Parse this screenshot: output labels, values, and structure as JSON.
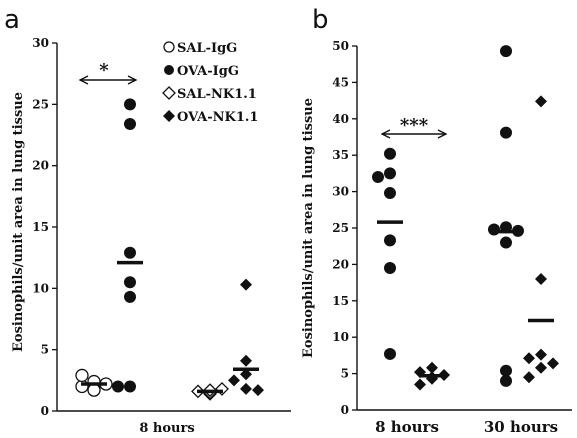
{
  "chart_data": [
    {
      "panel_label": "a",
      "type": "scatter",
      "ylabel": "Eosinophils/unit area in lung tissue",
      "xlabel": "8 hours",
      "ylim": [
        0,
        30
      ],
      "yticks": [
        "0",
        "5",
        "10",
        "15",
        "20",
        "25",
        "30"
      ],
      "yticks_values": [
        0,
        5,
        10,
        15,
        20,
        25,
        30
      ],
      "legend": [
        {
          "label": "SAL-IgG",
          "marker": "open-circle"
        },
        {
          "label": "OVA-IgG",
          "marker": "filled-circle"
        },
        {
          "label": "SAL-NK1.1",
          "marker": "open-diamond"
        },
        {
          "label": "OVA-NK1.1",
          "marker": "filled-diamond"
        }
      ],
      "groups": [
        {
          "name": "SAL-IgG",
          "marker": "open-circle",
          "values": [
            1.8,
            2.0,
            2.2,
            2.4,
            2.9,
            1.7
          ],
          "mean": 2.2
        },
        {
          "name": "OVA-IgG",
          "marker": "filled-circle",
          "values": [
            25.0,
            23.4,
            12.9,
            10.5,
            9.3,
            2.0,
            2.0
          ],
          "mean": 12.1
        },
        {
          "name": "SAL-NK1.1",
          "marker": "open-diamond",
          "values": [
            1.4,
            1.6,
            1.8,
            1.5,
            1.7
          ],
          "mean": 1.6
        },
        {
          "name": "OVA-NK1.1",
          "marker": "filled-diamond",
          "values": [
            10.3,
            4.1,
            3.0,
            2.5,
            1.8,
            1.7
          ],
          "mean": 3.4
        }
      ],
      "annotation": {
        "text": "*",
        "between": [
          "SAL-IgG",
          "OVA-IgG"
        ]
      }
    },
    {
      "panel_label": "b",
      "type": "scatter",
      "ylabel": "Eosinophils/unit area in lung tissue",
      "ylim": [
        0,
        50
      ],
      "yticks": [
        "0",
        "5",
        "10",
        "15",
        "20",
        "25",
        "30",
        "35",
        "40",
        "45",
        "50"
      ],
      "yticks_values": [
        0,
        5,
        10,
        15,
        20,
        25,
        30,
        35,
        40,
        45,
        50
      ],
      "categories": [
        "8 hours",
        "30 hours"
      ],
      "groups": [
        {
          "name": "8 hours OVA-IgG",
          "category": "8 hours",
          "marker": "filled-circle",
          "values": [
            35.2,
            32.5,
            32.0,
            29.8,
            23.3,
            19.5,
            7.7
          ],
          "mean": 25.8
        },
        {
          "name": "8 hours OVA-NK1.1",
          "category": "8 hours",
          "marker": "filled-diamond",
          "values": [
            5.8,
            5.2,
            4.8,
            4.5,
            4.3,
            3.5
          ],
          "mean": 4.7
        },
        {
          "name": "30 hours OVA-IgG",
          "category": "30 hours",
          "marker": "filled-circle",
          "values": [
            49.3,
            38.1,
            25.1,
            24.8,
            24.6,
            23.0,
            5.4,
            4.0
          ],
          "mean": 24.5
        },
        {
          "name": "30 hours OVA-NK1.1",
          "category": "30 hours",
          "marker": "filled-diamond",
          "values": [
            42.4,
            18.0,
            7.6,
            7.1,
            6.4,
            5.8,
            4.5
          ],
          "mean": 12.3
        }
      ],
      "annotation": {
        "text": "***",
        "between": [
          "8 hours OVA-IgG",
          "8 hours OVA-NK1.1"
        ]
      }
    }
  ]
}
